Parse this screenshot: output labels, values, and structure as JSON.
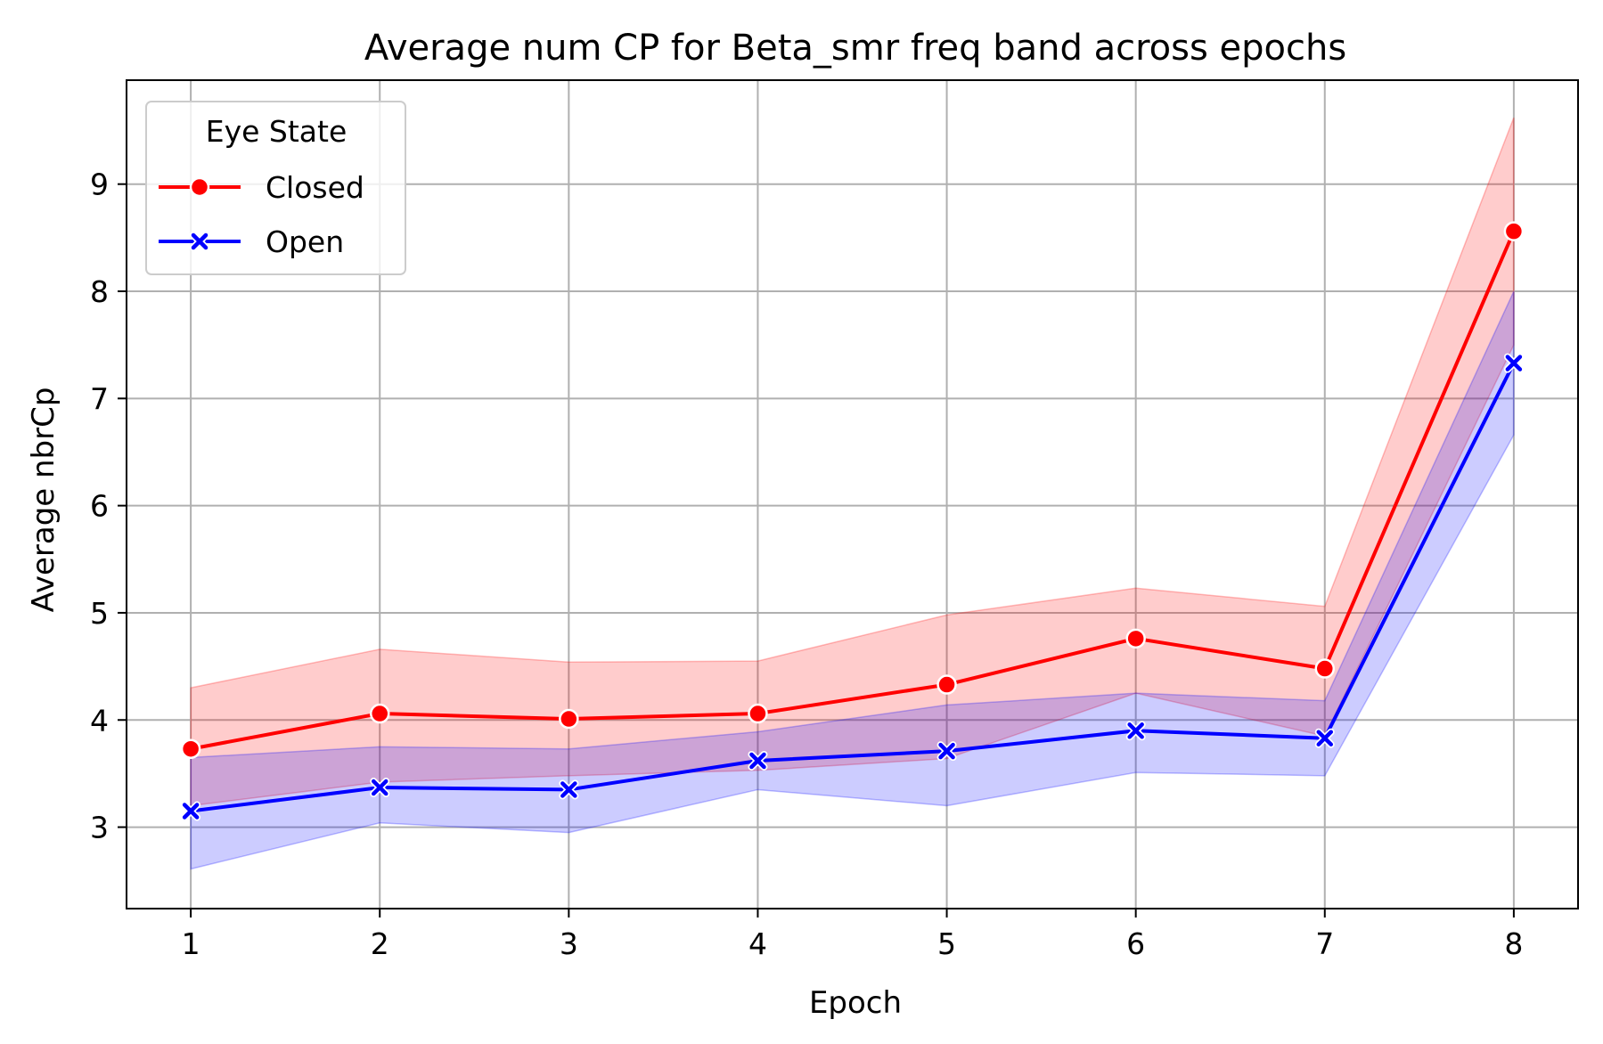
{
  "chart_data": {
    "type": "line",
    "title": "Average num CP for Beta_smr freq band across epochs",
    "xlabel": "Epoch",
    "ylabel": "Average nbrCp",
    "x": [
      1,
      2,
      3,
      4,
      5,
      6,
      7,
      8
    ],
    "xlim": [
      0.66,
      8.34
    ],
    "ylim": [
      2.24,
      9.97
    ],
    "xticks": [
      "1",
      "2",
      "3",
      "4",
      "5",
      "6",
      "7",
      "8"
    ],
    "yticks": [
      "3",
      "4",
      "5",
      "6",
      "7",
      "8",
      "9"
    ],
    "grid": true,
    "legend": {
      "title": "Eye State",
      "placement": "top-left"
    },
    "series": [
      {
        "name": "Closed",
        "color": "#ff0000",
        "marker": "circle",
        "values": [
          3.73,
          4.06,
          4.01,
          4.06,
          4.33,
          4.76,
          4.48,
          8.56
        ],
        "ci_lower": [
          3.2,
          3.42,
          3.48,
          3.53,
          3.64,
          4.25,
          3.85,
          7.5
        ],
        "ci_upper": [
          4.3,
          4.66,
          4.54,
          4.55,
          4.98,
          5.23,
          5.06,
          9.62
        ]
      },
      {
        "name": "Open",
        "color": "#0000ff",
        "marker": "x",
        "values": [
          3.15,
          3.37,
          3.35,
          3.62,
          3.71,
          3.9,
          3.83,
          7.33
        ],
        "ci_lower": [
          2.61,
          3.04,
          2.95,
          3.35,
          3.2,
          3.51,
          3.48,
          6.66
        ],
        "ci_upper": [
          3.65,
          3.75,
          3.73,
          3.89,
          4.14,
          4.25,
          4.18,
          8.0
        ]
      }
    ]
  }
}
